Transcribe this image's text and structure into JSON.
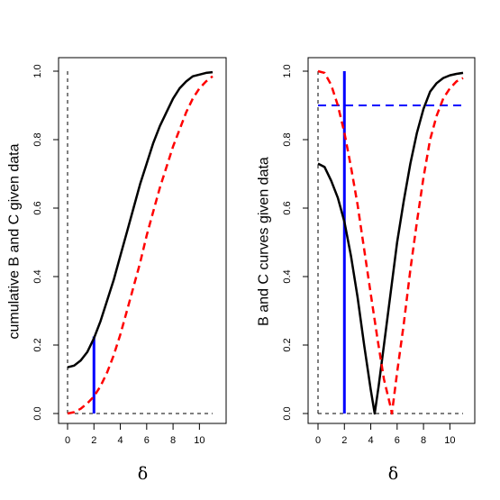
{
  "chart_data": [
    {
      "type": "line",
      "xlabel": "δ",
      "ylabel": "cumulative B and C given data",
      "xlim": [
        0,
        11
      ],
      "ylim": [
        0,
        1
      ],
      "xticks": [
        "0",
        "2",
        "4",
        "6",
        "8",
        "10"
      ],
      "yticks": [
        "0.0",
        "0.2",
        "0.4",
        "0.6",
        "0.8",
        "1.0"
      ],
      "grid": false,
      "series": [
        {
          "style": "solid",
          "color": "#000000",
          "x": [
            0,
            0.5,
            1,
            1.5,
            2,
            2.5,
            3,
            3.5,
            4,
            4.5,
            5,
            5.5,
            6,
            6.5,
            7,
            7.5,
            8,
            8.5,
            9,
            9.5,
            10,
            10.5,
            11
          ],
          "y": [
            0.135,
            0.14,
            0.155,
            0.18,
            0.22,
            0.27,
            0.33,
            0.39,
            0.46,
            0.53,
            0.6,
            0.67,
            0.73,
            0.79,
            0.84,
            0.88,
            0.92,
            0.95,
            0.97,
            0.985,
            0.99,
            0.995,
            0.997
          ]
        },
        {
          "style": "dashed",
          "color": "#ff0000",
          "x": [
            0,
            0.5,
            1,
            1.5,
            2,
            2.5,
            3,
            3.5,
            4,
            4.5,
            5,
            5.5,
            6,
            6.5,
            7,
            7.5,
            8,
            8.5,
            9,
            9.5,
            10,
            10.5,
            11
          ],
          "y": [
            0,
            0.004,
            0.014,
            0.03,
            0.05,
            0.08,
            0.12,
            0.17,
            0.23,
            0.3,
            0.37,
            0.44,
            0.52,
            0.59,
            0.66,
            0.72,
            0.78,
            0.83,
            0.88,
            0.92,
            0.95,
            0.97,
            0.985
          ]
        }
      ],
      "vlines": [
        {
          "x": 0,
          "y0": 0,
          "y1": 1,
          "style": "dashed",
          "color": "#000000"
        },
        {
          "x": 2,
          "y0": 0,
          "y1": 0.225,
          "style": "solid",
          "color": "#0000ff"
        }
      ],
      "hlines": [
        {
          "y": 0,
          "x0": 0,
          "x1": 11,
          "style": "dashed",
          "color": "#000000"
        }
      ]
    },
    {
      "type": "line",
      "xlabel": "δ",
      "ylabel": "B and C curves given data",
      "xlim": [
        0,
        11
      ],
      "ylim": [
        0,
        1
      ],
      "xticks": [
        "0",
        "2",
        "4",
        "6",
        "8",
        "10"
      ],
      "yticks": [
        "0.0",
        "0.2",
        "0.4",
        "0.6",
        "0.8",
        "1.0"
      ],
      "grid": false,
      "series": [
        {
          "style": "solid",
          "color": "#000000",
          "x": [
            0,
            0.5,
            1,
            1.5,
            2,
            2.5,
            3,
            3.5,
            4,
            4.3,
            4.6,
            5,
            5.5,
            6,
            6.5,
            7,
            7.5,
            8,
            8.5,
            9,
            9.5,
            10,
            10.5,
            11
          ],
          "y": [
            0.73,
            0.72,
            0.68,
            0.63,
            0.56,
            0.46,
            0.34,
            0.2,
            0.07,
            0.0,
            0.08,
            0.2,
            0.35,
            0.5,
            0.62,
            0.73,
            0.82,
            0.89,
            0.94,
            0.965,
            0.98,
            0.988,
            0.992,
            0.995
          ]
        },
        {
          "style": "dashed",
          "color": "#ff0000",
          "x": [
            0,
            0.5,
            1,
            1.5,
            2,
            2.5,
            3,
            3.5,
            4,
            4.5,
            5,
            5.5,
            5.6,
            6,
            6.5,
            7,
            7.5,
            8,
            8.5,
            9,
            9.5,
            10,
            10.5,
            11
          ],
          "y": [
            1.0,
            0.995,
            0.96,
            0.9,
            0.82,
            0.72,
            0.61,
            0.48,
            0.35,
            0.22,
            0.1,
            0.02,
            0.0,
            0.12,
            0.26,
            0.42,
            0.56,
            0.69,
            0.8,
            0.87,
            0.92,
            0.95,
            0.97,
            0.98
          ]
        }
      ],
      "vlines": [
        {
          "x": 0,
          "y0": 0,
          "y1": 1,
          "style": "dashed",
          "color": "#000000"
        },
        {
          "x": 2,
          "y0": 0,
          "y1": 1,
          "style": "solid",
          "color": "#0000ff"
        }
      ],
      "hlines": [
        {
          "y": 0,
          "x0": 0,
          "x1": 11,
          "style": "dashed",
          "color": "#000000"
        },
        {
          "y": 0.9,
          "x0": 0,
          "x1": 11,
          "style": "dashed",
          "color": "#0000ff"
        }
      ]
    }
  ]
}
